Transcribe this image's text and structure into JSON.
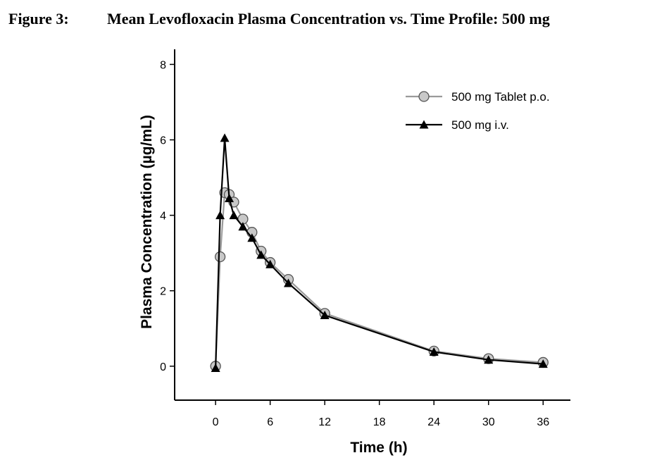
{
  "figure": {
    "label": "Figure 3:",
    "title": "Mean Levofloxacin Plasma Concentration vs. Time Profile: 500 mg"
  },
  "colors": {
    "tablet_marker_fill": "#c8c8c8",
    "tablet_line": "#9a9a9a",
    "iv_line": "#000000",
    "axis": "#000000"
  },
  "chart_data": {
    "type": "line",
    "title": "Mean Levofloxacin Plasma Concentration vs. Time Profile: 500 mg",
    "xlabel": "Time (h)",
    "ylabel": "Plasma Concentration (µg/mL)",
    "xlim": [
      -4.5,
      39
    ],
    "ylim": [
      -0.9,
      8.4
    ],
    "xticks": [
      0,
      6,
      12,
      18,
      24,
      30,
      36
    ],
    "yticks": [
      0,
      2,
      4,
      6,
      8
    ],
    "legend_position": "top-right",
    "series": [
      {
        "name": "500 mg Tablet p.o.",
        "marker": "circle",
        "x": [
          0,
          0.5,
          1,
          1.5,
          2,
          3,
          4,
          5,
          6,
          8,
          12,
          24,
          30,
          36
        ],
        "y": [
          0,
          2.9,
          4.6,
          4.55,
          4.35,
          3.9,
          3.55,
          3.05,
          2.75,
          2.3,
          1.4,
          0.4,
          0.2,
          0.1
        ]
      },
      {
        "name": "500 mg i.v.",
        "marker": "triangle",
        "x": [
          0,
          0.5,
          1,
          1.5,
          2,
          3,
          4,
          5,
          6,
          8,
          12,
          24,
          30,
          36
        ],
        "y": [
          -0.05,
          4.0,
          6.05,
          4.45,
          4.0,
          3.7,
          3.4,
          2.95,
          2.7,
          2.2,
          1.35,
          0.38,
          0.17,
          0.06
        ]
      }
    ]
  }
}
